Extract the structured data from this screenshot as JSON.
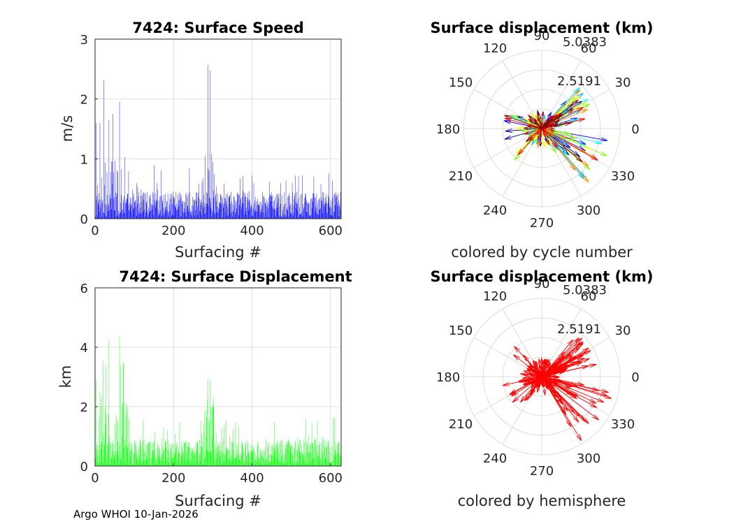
{
  "footer": "Argo WHOI 10-Jan-2026",
  "chart_data": [
    {
      "type": "bar",
      "title": "7424: Surface Speed",
      "xlabel": "Surfacing #",
      "ylabel": "m/s",
      "xlim": [
        0,
        627
      ],
      "ylim": [
        0,
        3
      ],
      "xticks": [
        "0",
        "200",
        "400",
        "600"
      ],
      "yticks": [
        "0",
        "1",
        "2",
        "3"
      ],
      "grid": true,
      "color": "#0000ff",
      "n_bars": 627,
      "peaks": [
        [
          2,
          1.6
        ],
        [
          12,
          1.6
        ],
        [
          22,
          2.32
        ],
        [
          35,
          1.65
        ],
        [
          45,
          1.75
        ],
        [
          62,
          1.95
        ],
        [
          75,
          1.03
        ],
        [
          150,
          0.9
        ],
        [
          240,
          0.85
        ],
        [
          287,
          2.57
        ],
        [
          292,
          2.48
        ],
        [
          300,
          0.95
        ],
        [
          400,
          0.72
        ],
        [
          510,
          0.72
        ],
        [
          580,
          0.45
        ]
      ],
      "baseline": [
        0.1,
        0.45
      ],
      "values": []
    },
    {
      "type": "polar",
      "title": "Surface displacement (km)",
      "subtitle": "colored by cycle number",
      "theta_ticks": [
        "0",
        "30",
        "60",
        "90",
        "120",
        "150",
        "180",
        "210",
        "240",
        "270",
        "300",
        "330"
      ],
      "r_ticks": [
        "2.5191",
        "5.0383"
      ],
      "rmax": 5.0383,
      "palette": [
        "#00008b",
        "#0000ff",
        "#00bfff",
        "#00ffff",
        "#7fff00",
        "#ffff00",
        "#ff8c00",
        "#ff0000",
        "#8b0000"
      ]
    },
    {
      "type": "bar",
      "title": "7424: Surface Displacement",
      "xlabel": "Surfacing #",
      "ylabel": "km",
      "xlim": [
        0,
        627
      ],
      "ylim": [
        0,
        6
      ],
      "xticks": [
        "0",
        "200",
        "400",
        "600"
      ],
      "yticks": [
        "0",
        "2",
        "4",
        "6"
      ],
      "grid": true,
      "color": "#00ff00",
      "n_bars": 627,
      "peaks": [
        [
          2,
          2.9
        ],
        [
          12,
          2.5
        ],
        [
          20,
          3.55
        ],
        [
          27,
          3.4
        ],
        [
          35,
          4.25
        ],
        [
          62,
          4.35
        ],
        [
          72,
          3.5
        ],
        [
          80,
          1.8
        ],
        [
          150,
          0.85
        ],
        [
          240,
          0.8
        ],
        [
          287,
          2.95
        ],
        [
          293,
          2.9
        ],
        [
          297,
          2.0
        ],
        [
          400,
          0.7
        ],
        [
          510,
          0.85
        ]
      ],
      "baseline": [
        0.2,
        0.9
      ],
      "values": []
    },
    {
      "type": "polar",
      "title": "Surface displacement (km)",
      "subtitle": "colored by hemisphere",
      "theta_ticks": [
        "0",
        "30",
        "60",
        "90",
        "120",
        "150",
        "180",
        "210",
        "240",
        "270",
        "300",
        "330"
      ],
      "r_ticks": [
        "2.5191",
        "5.0383"
      ],
      "rmax": 5.0383,
      "palette": [
        "#ff0000"
      ]
    }
  ]
}
